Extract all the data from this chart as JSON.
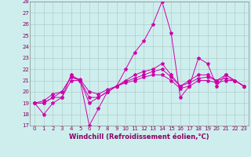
{
  "xlabel": "Windchill (Refroidissement éolien,°C)",
  "background_color": "#ceeeed",
  "grid_color": "#b0cccc",
  "line_color": "#cc00aa",
  "ylim": [
    17,
    28
  ],
  "xlim": [
    -0.5,
    23.5
  ],
  "yticks": [
    17,
    18,
    19,
    20,
    21,
    22,
    23,
    24,
    25,
    26,
    27,
    28
  ],
  "xticks": [
    0,
    1,
    2,
    3,
    4,
    5,
    6,
    7,
    8,
    9,
    10,
    11,
    12,
    13,
    14,
    15,
    16,
    17,
    18,
    19,
    20,
    21,
    22,
    23
  ],
  "series": [
    [
      19.0,
      18.0,
      19.0,
      19.5,
      21.5,
      21.0,
      17.0,
      18.5,
      20.0,
      20.5,
      22.0,
      23.5,
      24.5,
      26.0,
      28.0,
      25.2,
      19.5,
      20.5,
      23.0,
      22.5,
      20.5,
      21.5,
      21.0,
      20.5
    ],
    [
      19.0,
      19.0,
      19.5,
      20.0,
      21.3,
      21.0,
      19.5,
      19.5,
      20.0,
      20.5,
      21.0,
      21.5,
      21.8,
      22.0,
      22.5,
      21.5,
      20.5,
      21.0,
      21.5,
      21.5,
      21.0,
      21.5,
      21.0,
      20.5
    ],
    [
      19.0,
      19.0,
      19.5,
      19.5,
      21.0,
      21.0,
      19.0,
      19.5,
      20.0,
      20.5,
      20.8,
      21.0,
      21.3,
      21.5,
      21.5,
      21.0,
      20.3,
      20.5,
      21.0,
      21.0,
      20.8,
      21.0,
      21.0,
      20.5
    ],
    [
      19.0,
      19.2,
      19.8,
      20.0,
      21.3,
      21.1,
      20.0,
      19.8,
      20.2,
      20.5,
      20.9,
      21.2,
      21.5,
      21.8,
      22.0,
      21.3,
      20.5,
      20.8,
      21.2,
      21.3,
      21.0,
      21.2,
      21.0,
      20.5
    ]
  ],
  "xlabel_color": "#880066",
  "tick_color": "#880066",
  "tick_fontsize": 5.0,
  "xlabel_fontsize": 6.0
}
